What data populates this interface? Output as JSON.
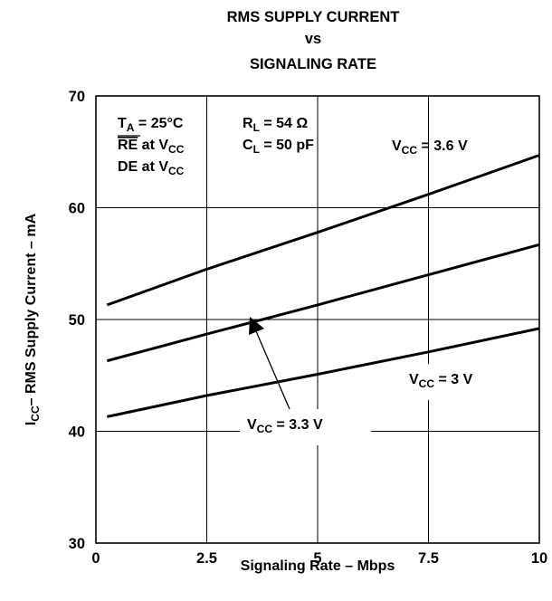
{
  "chart_data": {
    "type": "line",
    "title": [
      "RMS SUPPLY CURRENT",
      "vs",
      "SIGNALING RATE"
    ],
    "xlabel": "Signaling Rate – Mbps",
    "ylabel": {
      "prefix": "I",
      "sub": "CC",
      "rest": "– RMS Supply Current – mA"
    },
    "xlim": [
      0,
      10
    ],
    "ylim": [
      30,
      70
    ],
    "xticks": [
      0,
      2.5,
      5,
      7.5,
      10
    ],
    "xtick_labels": [
      "0",
      "2.5",
      "5",
      "7.5",
      "10"
    ],
    "yticks": [
      30,
      40,
      50,
      60,
      70
    ],
    "ytick_labels": [
      "30",
      "40",
      "50",
      "60",
      "70"
    ],
    "grid": true,
    "series": [
      {
        "name": "VCC = 3.6 V",
        "x": [
          0.25,
          2.5,
          5,
          7.5,
          10
        ],
        "y": [
          51.3,
          54.5,
          57.8,
          61.2,
          64.7
        ]
      },
      {
        "name": "VCC = 3.3 V",
        "x": [
          0.25,
          2.5,
          5,
          7.5,
          10
        ],
        "y": [
          46.3,
          48.7,
          51.3,
          54.0,
          56.7
        ]
      },
      {
        "name": "VCC = 3 V",
        "x": [
          0.25,
          2.5,
          5,
          7.5,
          10
        ],
        "y": [
          41.3,
          43.2,
          45.1,
          47.1,
          49.2
        ]
      }
    ],
    "conditions": {
      "ta": {
        "main": "T",
        "sub": "A",
        "rest": " = 25°C"
      },
      "re": {
        "over": "RE",
        "mid": " at V",
        "sub": "CC"
      },
      "de": {
        "main": "DE at V",
        "sub": "CC"
      },
      "rl": {
        "main": "R",
        "sub": "L",
        "rest": " = 54 Ω"
      },
      "cl": {
        "main": "C",
        "sub": "L",
        "rest": " = 50 pF"
      }
    },
    "annotations": {
      "v36": {
        "main": "V",
        "sub": "CC",
        "rest": " = 3.6 V"
      },
      "v3": {
        "main": "V",
        "sub": "CC",
        "rest": " = 3 V"
      },
      "v33": {
        "main": "V",
        "sub": "CC",
        "rest": " = 3.3 V"
      }
    },
    "colors": {
      "line": "#000000",
      "grid": "#000000",
      "background": "#ffffff"
    }
  }
}
